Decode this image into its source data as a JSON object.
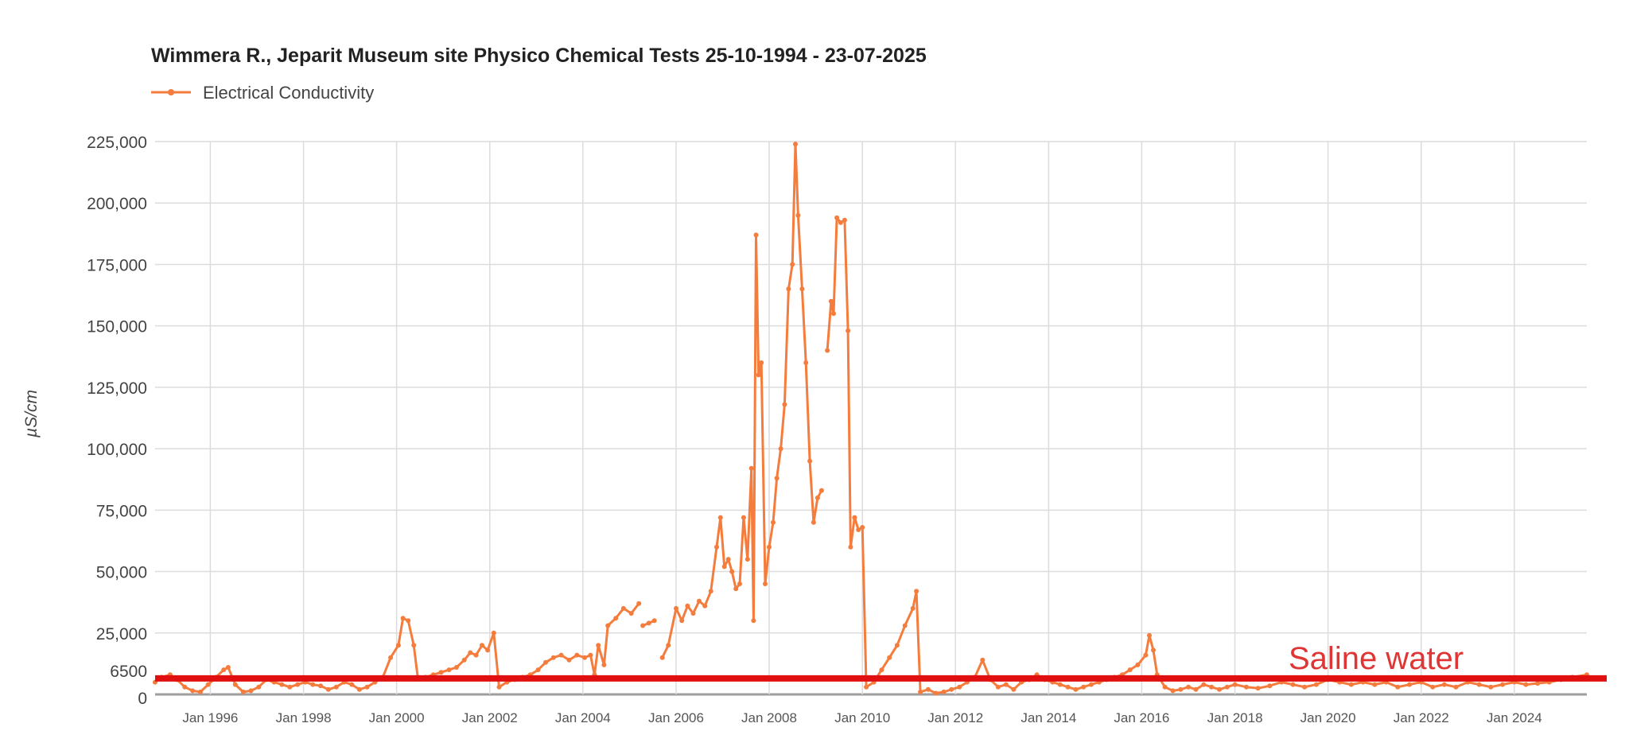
{
  "chart_data": {
    "type": "line",
    "title": "Wimmera R., Jeparit Museum site Physico Chemical Tests 25-10-1994 - 23-07-2025",
    "ylabel": "µS/cm",
    "xlabel": "",
    "ylim": [
      0,
      225000
    ],
    "xlim": [
      "1994-10-25",
      "2025-07-23"
    ],
    "grid": true,
    "legend_position": "top-left",
    "y_ticks": [
      {
        "value": 0,
        "label": "0"
      },
      {
        "value": 6500,
        "label": "6500"
      },
      {
        "value": 25000,
        "label": "25,000"
      },
      {
        "value": 50000,
        "label": "50,000"
      },
      {
        "value": 75000,
        "label": "75,000"
      },
      {
        "value": 100000,
        "label": "100,000"
      },
      {
        "value": 125000,
        "label": "125,000"
      },
      {
        "value": 150000,
        "label": "150,000"
      },
      {
        "value": 175000,
        "label": "175,000"
      },
      {
        "value": 200000,
        "label": "200,000"
      },
      {
        "value": 225000,
        "label": "225,000"
      }
    ],
    "x_ticks": [
      {
        "date": "1996-01-01",
        "label": "Jan 1996"
      },
      {
        "date": "1998-01-01",
        "label": "Jan 1998"
      },
      {
        "date": "2000-01-01",
        "label": "Jan 2000"
      },
      {
        "date": "2002-01-01",
        "label": "Jan 2002"
      },
      {
        "date": "2004-01-01",
        "label": "Jan 2004"
      },
      {
        "date": "2006-01-01",
        "label": "Jan 2006"
      },
      {
        "date": "2008-01-01",
        "label": "Jan 2008"
      },
      {
        "date": "2010-01-01",
        "label": "Jan 2010"
      },
      {
        "date": "2012-01-01",
        "label": "Jan 2012"
      },
      {
        "date": "2014-01-01",
        "label": "Jan 2014"
      },
      {
        "date": "2016-01-01",
        "label": "Jan 2016"
      },
      {
        "date": "2018-01-01",
        "label": "Jan 2018"
      },
      {
        "date": "2020-01-01",
        "label": "Jan 2020"
      },
      {
        "date": "2022-01-01",
        "label": "Jan 2022"
      },
      {
        "date": "2024-01-01",
        "label": "Jan 2024"
      }
    ],
    "series": [
      {
        "name": "Electrical Conductivity",
        "color": "#f47c3c",
        "segments": [
          [
            [
              "1994-10-25",
              5000
            ],
            [
              "1994-12-15",
              7000
            ],
            [
              "1995-02-20",
              8000
            ],
            [
              "1995-04-15",
              6000
            ],
            [
              "1995-06-15",
              3000
            ],
            [
              "1995-08-15",
              1500
            ],
            [
              "1995-10-15",
              1000
            ],
            [
              "1995-12-15",
              4000
            ],
            [
              "1996-02-15",
              7000
            ],
            [
              "1996-04-15",
              10000
            ],
            [
              "1996-05-20",
              11000
            ],
            [
              "1996-07-15",
              4000
            ],
            [
              "1996-09-15",
              1000
            ],
            [
              "1996-11-15",
              1500
            ],
            [
              "1997-01-15",
              3000
            ],
            [
              "1997-03-15",
              6000
            ],
            [
              "1997-05-15",
              5000
            ],
            [
              "1997-07-15",
              4000
            ],
            [
              "1997-09-15",
              3000
            ],
            [
              "1997-11-15",
              4000
            ],
            [
              "1998-01-15",
              5000
            ],
            [
              "1998-03-15",
              4000
            ],
            [
              "1998-05-15",
              3500
            ],
            [
              "1998-07-15",
              2000
            ],
            [
              "1998-09-15",
              3000
            ],
            [
              "1998-11-15",
              5000
            ],
            [
              "1999-01-15",
              4000
            ],
            [
              "1999-03-15",
              2000
            ],
            [
              "1999-05-15",
              3000
            ],
            [
              "1999-07-15",
              5000
            ],
            [
              "1999-09-15",
              7000
            ],
            [
              "1999-11-15",
              15000
            ],
            [
              "2000-01-15",
              20000
            ],
            [
              "2000-02-20",
              31000
            ],
            [
              "2000-04-01",
              30000
            ],
            [
              "2000-05-15",
              20000
            ],
            [
              "2000-06-15",
              7000
            ],
            [
              "2000-08-15",
              7000
            ],
            [
              "2000-10-15",
              8000
            ],
            [
              "2000-12-15",
              9000
            ],
            [
              "2001-02-15",
              10000
            ],
            [
              "2001-04-15",
              11000
            ],
            [
              "2001-06-15",
              14000
            ],
            [
              "2001-08-01",
              17000
            ],
            [
              "2001-09-15",
              16000
            ],
            [
              "2001-11-01",
              20000
            ],
            [
              "2001-12-15",
              18000
            ],
            [
              "2002-02-01",
              25000
            ],
            [
              "2002-03-15",
              3000
            ],
            [
              "2002-05-15",
              5000
            ],
            [
              "2002-07-15",
              6000
            ],
            [
              "2002-09-15",
              7000
            ],
            [
              "2002-11-15",
              8000
            ],
            [
              "2003-01-15",
              10000
            ],
            [
              "2003-03-15",
              13000
            ],
            [
              "2003-05-15",
              15000
            ],
            [
              "2003-07-15",
              16000
            ],
            [
              "2003-09-15",
              14000
            ],
            [
              "2003-11-15",
              16000
            ],
            [
              "2004-01-15",
              15000
            ],
            [
              "2004-03-01",
              16000
            ],
            [
              "2004-04-01",
              8000
            ],
            [
              "2004-05-01",
              20000
            ],
            [
              "2004-06-15",
              12000
            ],
            [
              "2004-07-15",
              28000
            ],
            [
              "2004-09-15",
              31000
            ],
            [
              "2004-11-15",
              35000
            ],
            [
              "2005-01-15",
              33000
            ],
            [
              "2005-03-15",
              37000
            ]
          ],
          [
            [
              "2005-04-15",
              28000
            ],
            [
              "2005-06-01",
              29000
            ],
            [
              "2005-07-15",
              30000
            ]
          ],
          [
            [
              "2005-09-15",
              15000
            ],
            [
              "2005-11-01",
              20000
            ],
            [
              "2006-01-01",
              35000
            ],
            [
              "2006-02-15",
              30000
            ],
            [
              "2006-04-01",
              36000
            ],
            [
              "2006-05-15",
              33000
            ],
            [
              "2006-07-01",
              38000
            ],
            [
              "2006-08-15",
              36000
            ],
            [
              "2006-10-01",
              42000
            ],
            [
              "2006-11-15",
              60000
            ],
            [
              "2006-12-15",
              72000
            ],
            [
              "2007-01-15",
              52000
            ],
            [
              "2007-02-15",
              55000
            ],
            [
              "2007-03-15",
              50000
            ],
            [
              "2007-04-15",
              43000
            ],
            [
              "2007-05-15",
              45000
            ],
            [
              "2007-06-15",
              72000
            ],
            [
              "2007-07-15",
              55000
            ],
            [
              "2007-08-15",
              92000
            ],
            [
              "2007-09-01",
              30000
            ],
            [
              "2007-09-20",
              187000
            ],
            [
              "2007-10-10",
              130000
            ],
            [
              "2007-11-01",
              135000
            ],
            [
              "2007-12-01",
              45000
            ],
            [
              "2008-01-01",
              60000
            ],
            [
              "2008-02-01",
              70000
            ],
            [
              "2008-03-01",
              88000
            ],
            [
              "2008-04-01",
              100000
            ],
            [
              "2008-05-01",
              118000
            ],
            [
              "2008-06-01",
              165000
            ],
            [
              "2008-07-01",
              175000
            ],
            [
              "2008-07-25",
              224000
            ],
            [
              "2008-08-15",
              195000
            ],
            [
              "2008-09-15",
              165000
            ],
            [
              "2008-10-15",
              135000
            ],
            [
              "2008-11-15",
              95000
            ],
            [
              "2008-12-15",
              70000
            ],
            [
              "2009-01-15",
              80000
            ],
            [
              "2009-02-15",
              83000
            ]
          ],
          [
            [
              "2009-04-01",
              140000
            ],
            [
              "2009-05-01",
              160000
            ],
            [
              "2009-05-20",
              155000
            ],
            [
              "2009-06-15",
              194000
            ],
            [
              "2009-07-15",
              192000
            ],
            [
              "2009-08-15",
              193000
            ],
            [
              "2009-09-10",
              148000
            ],
            [
              "2009-10-01",
              60000
            ],
            [
              "2009-11-01",
              72000
            ],
            [
              "2009-12-01",
              67000
            ],
            [
              "2010-01-01",
              68000
            ],
            [
              "2010-02-01",
              3000
            ],
            [
              "2010-04-01",
              5000
            ],
            [
              "2010-06-01",
              10000
            ],
            [
              "2010-08-01",
              15000
            ],
            [
              "2010-10-01",
              20000
            ],
            [
              "2010-12-01",
              28000
            ],
            [
              "2011-02-01",
              35000
            ],
            [
              "2011-03-01",
              42000
            ],
            [
              "2011-04-01",
              1000
            ],
            [
              "2011-06-01",
              2000
            ],
            [
              "2011-08-01",
              500
            ],
            [
              "2011-10-01",
              1000
            ],
            [
              "2011-12-01",
              2000
            ],
            [
              "2012-02-01",
              3000
            ],
            [
              "2012-04-01",
              5000
            ],
            [
              "2012-06-01",
              7000
            ],
            [
              "2012-08-01",
              14000
            ],
            [
              "2012-10-01",
              6000
            ],
            [
              "2012-12-01",
              3000
            ],
            [
              "2013-02-01",
              4000
            ],
            [
              "2013-04-01",
              2000
            ],
            [
              "2013-06-01",
              5000
            ],
            [
              "2013-08-01",
              6000
            ],
            [
              "2013-10-01",
              8000
            ],
            [
              "2013-12-01",
              6000
            ],
            [
              "2014-02-01",
              5000
            ],
            [
              "2014-04-01",
              4000
            ],
            [
              "2014-06-01",
              3000
            ],
            [
              "2014-08-01",
              2000
            ],
            [
              "2014-10-01",
              3000
            ],
            [
              "2014-12-01",
              4000
            ],
            [
              "2015-02-01",
              5000
            ],
            [
              "2015-04-01",
              6000
            ],
            [
              "2015-06-01",
              7000
            ],
            [
              "2015-08-01",
              8000
            ],
            [
              "2015-10-01",
              10000
            ],
            [
              "2015-12-01",
              12000
            ],
            [
              "2016-02-01",
              16000
            ],
            [
              "2016-03-01",
              24000
            ],
            [
              "2016-04-01",
              18000
            ],
            [
              "2016-05-01",
              8000
            ],
            [
              "2016-07-01",
              3000
            ],
            [
              "2016-09-01",
              1500
            ],
            [
              "2016-11-01",
              2000
            ],
            [
              "2017-01-01",
              3000
            ],
            [
              "2017-03-01",
              2000
            ],
            [
              "2017-05-01",
              4000
            ],
            [
              "2017-07-01",
              3000
            ],
            [
              "2017-09-01",
              2000
            ],
            [
              "2017-11-01",
              3000
            ],
            [
              "2018-01-01",
              4000
            ],
            [
              "2018-04-01",
              3000
            ],
            [
              "2018-07-01",
              2500
            ],
            [
              "2018-10-01",
              3500
            ],
            [
              "2019-01-01",
              5000
            ],
            [
              "2019-04-01",
              4000
            ],
            [
              "2019-07-01",
              3000
            ],
            [
              "2019-10-01",
              4000
            ],
            [
              "2020-01-01",
              6000
            ],
            [
              "2020-04-01",
              5000
            ],
            [
              "2020-07-01",
              4000
            ],
            [
              "2020-10-01",
              5000
            ],
            [
              "2021-01-01",
              4000
            ],
            [
              "2021-04-01",
              5000
            ],
            [
              "2021-07-01",
              3000
            ],
            [
              "2021-10-01",
              4000
            ],
            [
              "2022-01-01",
              5000
            ],
            [
              "2022-04-01",
              3000
            ],
            [
              "2022-07-01",
              4000
            ],
            [
              "2022-10-01",
              3000
            ],
            [
              "2023-01-01",
              5000
            ],
            [
              "2023-04-01",
              4000
            ],
            [
              "2023-07-01",
              3000
            ],
            [
              "2023-10-01",
              4000
            ],
            [
              "2024-01-01",
              5000
            ],
            [
              "2024-04-01",
              4000
            ],
            [
              "2024-07-01",
              4500
            ],
            [
              "2024-10-01",
              5000
            ],
            [
              "2025-01-01",
              6000
            ],
            [
              "2025-04-01",
              7000
            ],
            [
              "2025-07-23",
              8000
            ]
          ]
        ]
      }
    ],
    "annotations": [
      {
        "type": "hline",
        "value": 6500,
        "color": "#e01010",
        "label": "Saline water",
        "label_color": "#e03535"
      }
    ]
  }
}
